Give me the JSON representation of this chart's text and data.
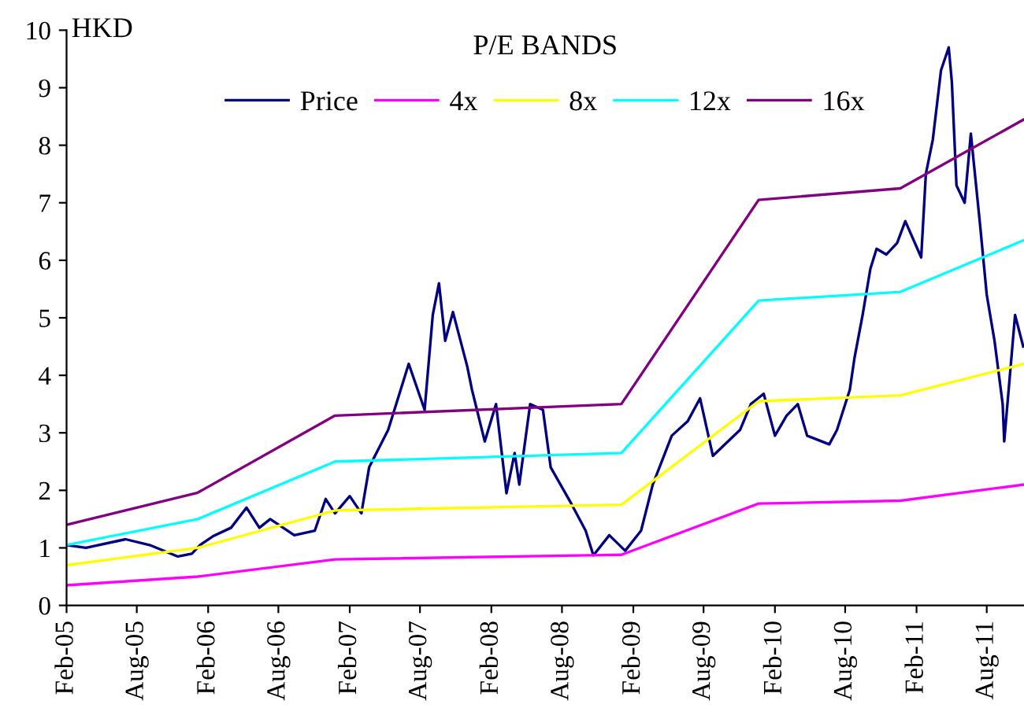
{
  "chart_data": {
    "type": "line",
    "title": "P/E BANDS",
    "ylabel": "HKD",
    "xlim": [
      "2005-02-01",
      "2011-11-05"
    ],
    "ylim": [
      0,
      10
    ],
    "yticks": [
      0,
      1,
      2,
      3,
      4,
      5,
      6,
      7,
      8,
      9,
      10
    ],
    "xticks": [
      {
        "value": "2005-02-01",
        "label": "Feb-05"
      },
      {
        "value": "2005-08-01",
        "label": "Aug-05"
      },
      {
        "value": "2006-02-01",
        "label": "Feb-06"
      },
      {
        "value": "2006-08-01",
        "label": "Aug-06"
      },
      {
        "value": "2007-02-01",
        "label": "Feb-07"
      },
      {
        "value": "2007-08-01",
        "label": "Aug-07"
      },
      {
        "value": "2008-02-01",
        "label": "Feb-08"
      },
      {
        "value": "2008-08-01",
        "label": "Aug-08"
      },
      {
        "value": "2009-02-01",
        "label": "Feb-09"
      },
      {
        "value": "2009-08-01",
        "label": "Aug-09"
      },
      {
        "value": "2010-02-01",
        "label": "Feb-10"
      },
      {
        "value": "2010-08-01",
        "label": "Aug-10"
      },
      {
        "value": "2011-02-01",
        "label": "Feb-11"
      },
      {
        "value": "2011-08-01",
        "label": "Aug-11"
      }
    ],
    "grid": false,
    "legend": "top",
    "line_style": "solid",
    "marker": "none",
    "series": [
      {
        "name": "Price",
        "color": "#000080",
        "x": [
          "2005-02-01",
          "2005-03-23",
          "2005-07-03",
          "2005-09-03",
          "2005-11-15",
          "2005-12-21",
          "2006-01-11",
          "2006-02-13",
          "2006-04-01",
          "2006-05-11",
          "2006-06-13",
          "2006-07-11",
          "2006-09-11",
          "2006-11-03",
          "2006-12-01",
          "2006-12-25",
          "2007-02-01",
          "2007-03-03",
          "2007-03-23",
          "2007-05-11",
          "2007-07-03",
          "2007-08-13",
          "2007-09-03",
          "2007-09-19",
          "2007-10-05",
          "2007-10-25",
          "2007-12-01",
          "2007-12-13",
          "2008-01-15",
          "2008-02-13",
          "2008-03-11",
          "2008-04-01",
          "2008-04-13",
          "2008-05-11",
          "2008-06-13",
          "2008-07-03",
          "2008-08-25",
          "2008-10-01",
          "2008-10-21",
          "2008-12-01",
          "2009-01-11",
          "2009-02-21",
          "2009-03-23",
          "2009-05-11",
          "2009-06-21",
          "2009-07-23",
          "2009-08-25",
          "2009-11-03",
          "2009-12-01",
          "2010-01-03",
          "2010-02-01",
          "2010-03-03",
          "2010-04-01",
          "2010-04-25",
          "2010-06-21",
          "2010-07-11",
          "2010-08-13",
          "2010-08-25",
          "2010-09-15",
          "2010-10-05",
          "2010-10-21",
          "2010-11-15",
          "2010-12-13",
          "2011-01-03",
          "2011-02-13",
          "2011-02-25",
          "2011-03-15",
          "2011-04-05",
          "2011-04-25",
          "2011-05-03",
          "2011-05-15",
          "2011-06-05",
          "2011-06-21",
          "2011-07-15",
          "2011-08-01",
          "2011-08-21",
          "2011-09-11",
          "2011-09-15",
          "2011-10-13",
          "2011-11-03"
        ],
        "values": [
          1.05,
          1.0,
          1.15,
          1.05,
          0.85,
          0.9,
          1.05,
          1.2,
          1.35,
          1.7,
          1.35,
          1.5,
          1.22,
          1.3,
          1.85,
          1.6,
          1.9,
          1.6,
          2.4,
          3.05,
          4.2,
          3.4,
          5.05,
          5.6,
          4.6,
          5.1,
          4.15,
          3.75,
          2.85,
          3.5,
          1.95,
          2.65,
          2.1,
          3.5,
          3.4,
          2.4,
          1.77,
          1.3,
          0.87,
          1.22,
          0.95,
          1.3,
          2.1,
          2.95,
          3.2,
          3.6,
          2.6,
          3.05,
          3.5,
          3.68,
          2.95,
          3.3,
          3.5,
          2.95,
          2.8,
          3.05,
          3.75,
          4.3,
          5.05,
          5.85,
          6.2,
          6.1,
          6.3,
          6.68,
          6.05,
          7.5,
          8.1,
          9.3,
          9.7,
          9.1,
          7.3,
          7.0,
          8.2,
          6.6,
          5.4,
          4.6,
          3.5,
          2.85,
          5.05,
          4.5
        ]
      },
      {
        "name": "4x",
        "color": "#ff00ff",
        "x": [
          "2005-02-01",
          "2006-01-05",
          "2006-12-25",
          "2009-01-01",
          "2009-12-21",
          "2010-12-21",
          "2011-11-05"
        ],
        "values": [
          0.35,
          0.5,
          0.8,
          0.88,
          1.77,
          1.82,
          2.1
        ]
      },
      {
        "name": "8x",
        "color": "#ffff00",
        "x": [
          "2005-02-01",
          "2006-01-05",
          "2006-12-25",
          "2009-01-01",
          "2009-12-21",
          "2010-12-21",
          "2011-11-05"
        ],
        "values": [
          0.7,
          1.0,
          1.65,
          1.75,
          3.55,
          3.65,
          4.2
        ]
      },
      {
        "name": "12x",
        "color": "#00ffff",
        "x": [
          "2005-02-01",
          "2006-01-05",
          "2006-12-25",
          "2009-01-01",
          "2009-12-21",
          "2010-12-21",
          "2011-11-05"
        ],
        "values": [
          1.05,
          1.5,
          2.5,
          2.65,
          5.3,
          5.45,
          6.35
        ]
      },
      {
        "name": "16x",
        "color": "#800080",
        "x": [
          "2005-02-01",
          "2006-01-05",
          "2006-12-25",
          "2009-01-01",
          "2009-12-21",
          "2010-12-21",
          "2011-11-05"
        ],
        "values": [
          1.4,
          1.96,
          3.3,
          3.5,
          7.05,
          7.25,
          8.45
        ]
      }
    ]
  }
}
